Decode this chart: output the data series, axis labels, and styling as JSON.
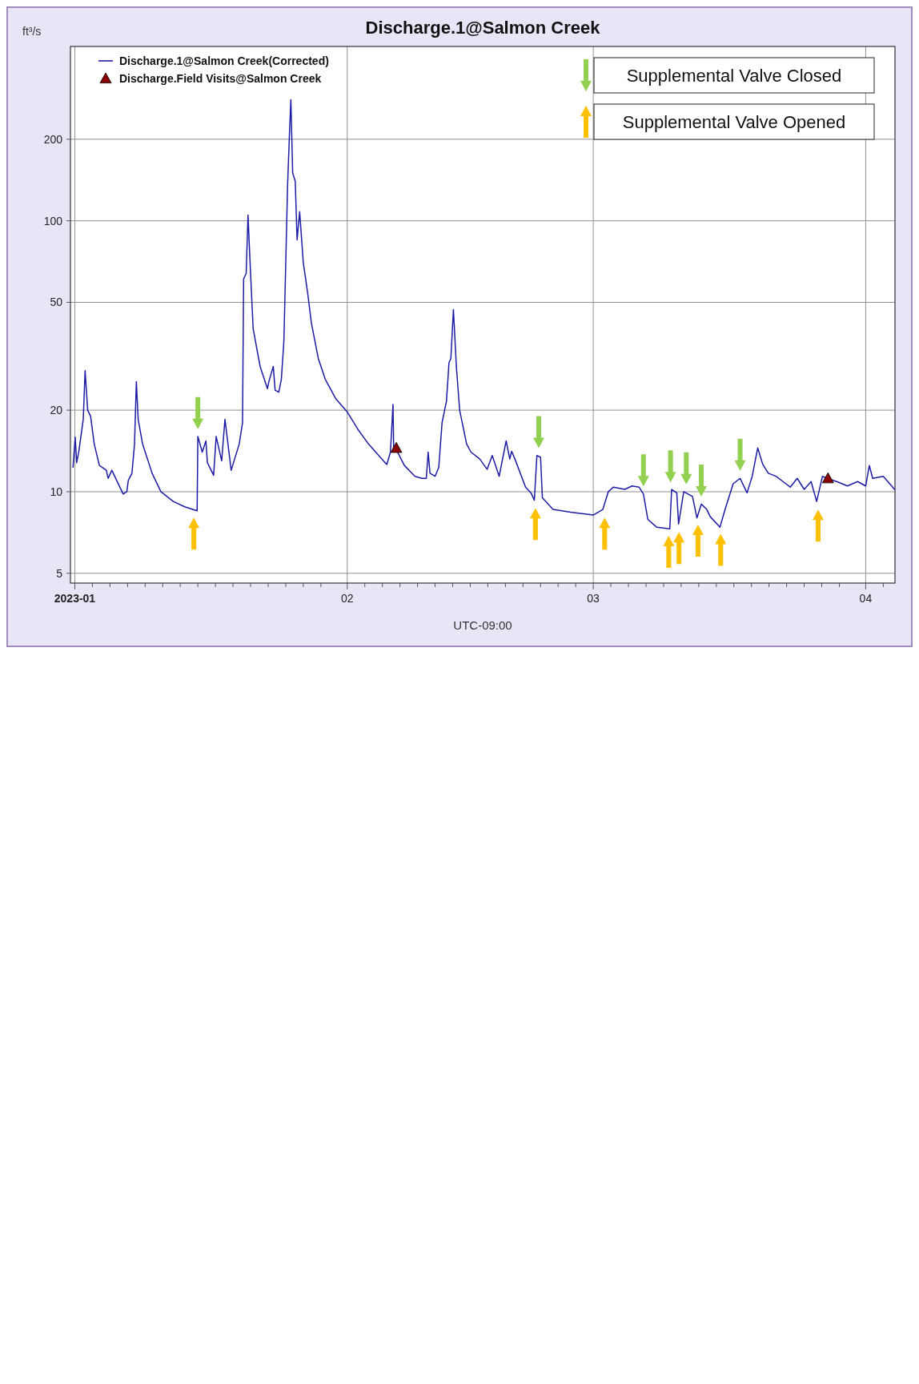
{
  "chart_data": {
    "type": "line",
    "title": "Discharge.1@Salmon Creek",
    "xlabel": "UTC-09:00",
    "ylabel": "ft³/s",
    "log": "y",
    "grid": true,
    "legend": "top left",
    "line_style": "solid",
    "xlim": [
      "2022-12-31T12:00",
      "2023-04-04T08:00"
    ],
    "ylim": [
      4.6,
      440
    ],
    "yticks": [
      5,
      10,
      20,
      50,
      100,
      200
    ],
    "xticks": [
      {
        "value": "2023-01-01",
        "label": "2023-01"
      },
      {
        "value": "2023-01-03",
        "label": null
      },
      {
        "value": "2023-01-05",
        "label": null
      },
      {
        "value": "2023-01-07",
        "label": null
      },
      {
        "value": "2023-01-09",
        "label": null
      },
      {
        "value": "2023-01-11",
        "label": null
      },
      {
        "value": "2023-01-13",
        "label": null
      },
      {
        "value": "2023-01-15",
        "label": null
      },
      {
        "value": "2023-01-17",
        "label": null
      },
      {
        "value": "2023-01-19",
        "label": null
      },
      {
        "value": "2023-01-21",
        "label": null
      },
      {
        "value": "2023-01-23",
        "label": null
      },
      {
        "value": "2023-01-25",
        "label": null
      },
      {
        "value": "2023-01-27",
        "label": null
      },
      {
        "value": "2023-01-29",
        "label": null
      },
      {
        "value": "2023-02-01",
        "label": "02"
      },
      {
        "value": "2023-02-03",
        "label": null
      },
      {
        "value": "2023-02-05",
        "label": null
      },
      {
        "value": "2023-02-07",
        "label": null
      },
      {
        "value": "2023-02-09",
        "label": null
      },
      {
        "value": "2023-02-11",
        "label": null
      },
      {
        "value": "2023-02-13",
        "label": null
      },
      {
        "value": "2023-02-15",
        "label": null
      },
      {
        "value": "2023-02-17",
        "label": null
      },
      {
        "value": "2023-02-19",
        "label": null
      },
      {
        "value": "2023-02-21",
        "label": null
      },
      {
        "value": "2023-02-23",
        "label": null
      },
      {
        "value": "2023-02-25",
        "label": null
      },
      {
        "value": "2023-02-27",
        "label": null
      },
      {
        "value": "2023-03-01",
        "label": "03"
      },
      {
        "value": "2023-03-03",
        "label": null
      },
      {
        "value": "2023-03-05",
        "label": null
      },
      {
        "value": "2023-03-07",
        "label": null
      },
      {
        "value": "2023-03-09",
        "label": null
      },
      {
        "value": "2023-03-11",
        "label": null
      },
      {
        "value": "2023-03-13",
        "label": null
      },
      {
        "value": "2023-03-15",
        "label": null
      },
      {
        "value": "2023-03-17",
        "label": null
      },
      {
        "value": "2023-03-19",
        "label": null
      },
      {
        "value": "2023-03-21",
        "label": null
      },
      {
        "value": "2023-03-23",
        "label": null
      },
      {
        "value": "2023-03-25",
        "label": null
      },
      {
        "value": "2023-03-27",
        "label": null
      },
      {
        "value": "2023-03-29",
        "label": null
      },
      {
        "value": "2023-04-01",
        "label": "04"
      },
      {
        "value": "2023-04-03",
        "label": null
      }
    ],
    "series": [
      {
        "name": "Discharge.1@Salmon Creek(Corrected)",
        "color": "#1c1ca8",
        "x": [
          "2022-12-31T19:00",
          "2023-01-01T01:00",
          "2023-01-01T05:00",
          "2023-01-01T11:00",
          "2023-01-01T23:00",
          "2023-01-02T04:00",
          "2023-01-02T11:00",
          "2023-01-02T19:00",
          "2023-01-03T05:00",
          "2023-01-03T19:00",
          "2023-01-04T14:00",
          "2023-01-04T19:00",
          "2023-01-05T05:00",
          "2023-01-06T12:00",
          "2023-01-06T22:00",
          "2023-01-07T02:00",
          "2023-01-07T12:00",
          "2023-01-07T19:00",
          "2023-01-08T00:00",
          "2023-01-08T05:00",
          "2023-01-08T17:00",
          "2023-01-09T19:00",
          "2023-01-10T19:00",
          "2023-01-12T05:00",
          "2023-01-13T12:00",
          "2023-01-14T22:00",
          "2023-01-15T00:00",
          "2023-01-15T12:00",
          "2023-01-15T22:00",
          "2023-01-16T02:00",
          "2023-01-16T19:00",
          "2023-01-17T02:00",
          "2023-01-17T17:00",
          "2023-01-18T02:00",
          "2023-01-18T19:00",
          "2023-01-19T17:00",
          "2023-01-20T02:00",
          "2023-01-20T05:00",
          "2023-01-20T12:00",
          "2023-01-20T17:00",
          "2023-01-20T22:00",
          "2023-01-21T07:00",
          "2023-01-22T02:00",
          "2023-01-22T22:00",
          "2023-01-23T02:00",
          "2023-01-23T14:00",
          "2023-01-23T19:00",
          "2023-01-24T05:00",
          "2023-01-24T12:00",
          "2023-01-24T19:00",
          "2023-01-25T05:00",
          "2023-01-25T10:00",
          "2023-01-25T14:00",
          "2023-01-25T19:00",
          "2023-01-26T02:00",
          "2023-01-26T07:00",
          "2023-01-26T14:00",
          "2023-01-27T00:00",
          "2023-01-27T12:00",
          "2023-01-27T22:00",
          "2023-01-28T17:00",
          "2023-01-29T12:00",
          "2023-01-30T17:00",
          "2023-02-01T00:00",
          "2023-02-02T05:00",
          "2023-02-03T10:00",
          "2023-02-04T14:00",
          "2023-02-05T12:00",
          "2023-02-05T22:00",
          "2023-02-06T05:00",
          "2023-02-06T07:00",
          "2023-02-06T14:00",
          "2023-02-07T12:00",
          "2023-02-08T17:00",
          "2023-02-09T12:00",
          "2023-02-10T00:00",
          "2023-02-10T05:00",
          "2023-02-10T10:00",
          "2023-02-11T00:00",
          "2023-02-11T10:00",
          "2023-02-11T19:00",
          "2023-02-12T07:00",
          "2023-02-12T14:00",
          "2023-02-12T19:00",
          "2023-02-13T02:00",
          "2023-02-13T10:00",
          "2023-02-13T19:00",
          "2023-02-14T14:00",
          "2023-02-15T02:00",
          "2023-02-16T02:00",
          "2023-02-16T22:00",
          "2023-02-17T12:00",
          "2023-02-18T07:00",
          "2023-02-19T02:00",
          "2023-02-19T12:00",
          "2023-02-19T17:00",
          "2023-02-20T02:00",
          "2023-02-21T07:00",
          "2023-02-21T22:00",
          "2023-02-22T07:00",
          "2023-02-22T14:00",
          "2023-02-23T00:00",
          "2023-02-23T05:00",
          "2023-02-24T10:00",
          "2023-02-26T10:00",
          "2023-03-01T00:00",
          "2023-03-02T02:00",
          "2023-03-02T17:00",
          "2023-03-03T07:00",
          "2023-03-04T14:00",
          "2023-03-05T10:00",
          "2023-03-06T05:00",
          "2023-03-06T17:00",
          "2023-03-07T05:00",
          "2023-03-08T05:00",
          "2023-03-09T17:00",
          "2023-03-09T22:00",
          "2023-03-10T12:00",
          "2023-03-10T17:00",
          "2023-03-11T07:00",
          "2023-03-12T07:00",
          "2023-03-12T19:00",
          "2023-03-13T07:00",
          "2023-03-13T22:00",
          "2023-03-14T07:00",
          "2023-03-15T10:00",
          "2023-03-16T00:00",
          "2023-03-16T22:00",
          "2023-03-17T17:00",
          "2023-03-18T12:00",
          "2023-03-19T02:00",
          "2023-03-19T17:00",
          "2023-03-20T07:00",
          "2023-03-20T22:00",
          "2023-03-21T19:00",
          "2023-03-22T14:00",
          "2023-03-23T10:00",
          "2023-03-24T05:00",
          "2023-03-25T00:00",
          "2023-03-25T19:00",
          "2023-03-26T10:00",
          "2023-03-27T02:00",
          "2023-03-27T14:00",
          "2023-03-28T17:00",
          "2023-03-29T22:00",
          "2023-03-31T02:00",
          "2023-04-01T00:00",
          "2023-04-01T10:00",
          "2023-04-01T19:00",
          "2023-04-03T00:00",
          "2023-04-04T07:00"
        ],
        "values": [
          12.3,
          15.9,
          12.8,
          14.1,
          18.5,
          28,
          20,
          19,
          15,
          12.5,
          12,
          11.2,
          12,
          9.8,
          10,
          11,
          11.7,
          15,
          25.5,
          18.5,
          15,
          11.7,
          10,
          9.2,
          8.8,
          8.5,
          16,
          14,
          15.4,
          12.8,
          11.5,
          16,
          13,
          18.5,
          12,
          15,
          18,
          61,
          64,
          105,
          73,
          40,
          29,
          24,
          25.5,
          29,
          23.7,
          23.3,
          26,
          36,
          134,
          206,
          280,
          150,
          140,
          85,
          108,
          70,
          54,
          42,
          31,
          26,
          22,
          19.7,
          17,
          15,
          13.6,
          12.6,
          14,
          21,
          14,
          14.3,
          12.5,
          11.4,
          11.2,
          11.2,
          14,
          11.7,
          11.4,
          12.3,
          18,
          21.6,
          30,
          31,
          47,
          29,
          20,
          15,
          14,
          13.2,
          12.1,
          13.6,
          11.4,
          15.4,
          13.2,
          14.1,
          13.2,
          10.4,
          9.9,
          9.3,
          13.6,
          13.4,
          9.5,
          8.6,
          8.4,
          8.2,
          8.6,
          10,
          10.4,
          10.2,
          10.5,
          10.4,
          9.8,
          7.9,
          7.4,
          7.3,
          10.2,
          9.9,
          7.6,
          10,
          9.6,
          8,
          9,
          8.6,
          8.1,
          7.4,
          8.6,
          10.7,
          11.2,
          9.9,
          11.4,
          14.5,
          12.6,
          11.7,
          11.4,
          10.9,
          10.4,
          11.2,
          10.2,
          10.9,
          9.2,
          11.4,
          11.2,
          10.9,
          10.5,
          10.9,
          10.5,
          12.5,
          11.2,
          11.4,
          10.2
        ]
      },
      {
        "name": "Discharge.Field Visits@Salmon Creek",
        "type": "scatter",
        "marker": "triangle",
        "color": "#8b0000",
        "x": [
          "2023-02-06T14:00",
          "2023-03-27T17:00"
        ],
        "values": [
          14.5,
          11.2
        ]
      },
      {
        "name": "Supplemental Valve Closed",
        "type": "scatter",
        "color": "#92d050",
        "x": [
          "2023-01-15T00:00",
          "2023-02-22T19:00",
          "2023-03-06T17:00",
          "2023-03-09T19:00",
          "2023-03-11T14:00",
          "2023-03-13T07:00",
          "2023-03-17T17:00"
        ],
        "values": [
          19.5,
          16.6,
          12,
          12.4,
          12.2,
          11,
          13.7
        ]
      },
      {
        "name": "Supplemental Valve Opened",
        "type": "scatter",
        "color": "#ffc000",
        "x": [
          "2023-01-14T13:00",
          "2023-02-22T10:00",
          "2023-03-02T07:00",
          "2023-03-09T14:00",
          "2023-03-10T18:00",
          "2023-03-12T22:00",
          "2023-03-15T12:00",
          "2023-03-26T14:00"
        ],
        "values": [
          7,
          7.6,
          7,
          6,
          6.2,
          6.6,
          6.1,
          7.5
        ]
      }
    ]
  }
}
